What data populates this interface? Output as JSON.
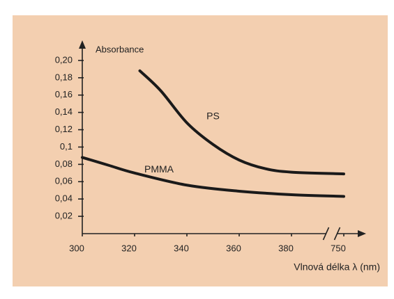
{
  "chart_data": {
    "type": "line",
    "y_label": "Absorbance",
    "x_label": "Vlnová délka λ (nm)",
    "ylim": [
      0,
      0.22
    ],
    "yticks": [
      {
        "value": 0.02,
        "label": "0,02"
      },
      {
        "value": 0.04,
        "label": "0,04"
      },
      {
        "value": 0.06,
        "label": "0,06"
      },
      {
        "value": 0.08,
        "label": "0,08"
      },
      {
        "value": 0.1,
        "label": "0,1"
      },
      {
        "value": 0.12,
        "label": "0,12"
      },
      {
        "value": 0.14,
        "label": "0,14"
      },
      {
        "value": 0.16,
        "label": "0,16"
      },
      {
        "value": 0.18,
        "label": "0,18"
      },
      {
        "value": 0.2,
        "label": "0,20"
      }
    ],
    "xlim": [
      300,
      750
    ],
    "xticks": [
      300,
      320,
      340,
      360,
      380,
      750
    ],
    "x_break": true,
    "series": [
      {
        "name": "PS",
        "color": "#1a1a1a",
        "x": [
          322,
          330,
          340,
          350,
          360,
          370,
          380,
          750
        ],
        "values": [
          0.188,
          0.165,
          0.128,
          0.103,
          0.085,
          0.075,
          0.071,
          0.069
        ]
      },
      {
        "name": "PMMA",
        "color": "#1a1a1a",
        "x": [
          300,
          310,
          320,
          340,
          360,
          380,
          750
        ],
        "values": [
          0.088,
          0.079,
          0.07,
          0.056,
          0.049,
          0.045,
          0.043
        ]
      }
    ]
  }
}
